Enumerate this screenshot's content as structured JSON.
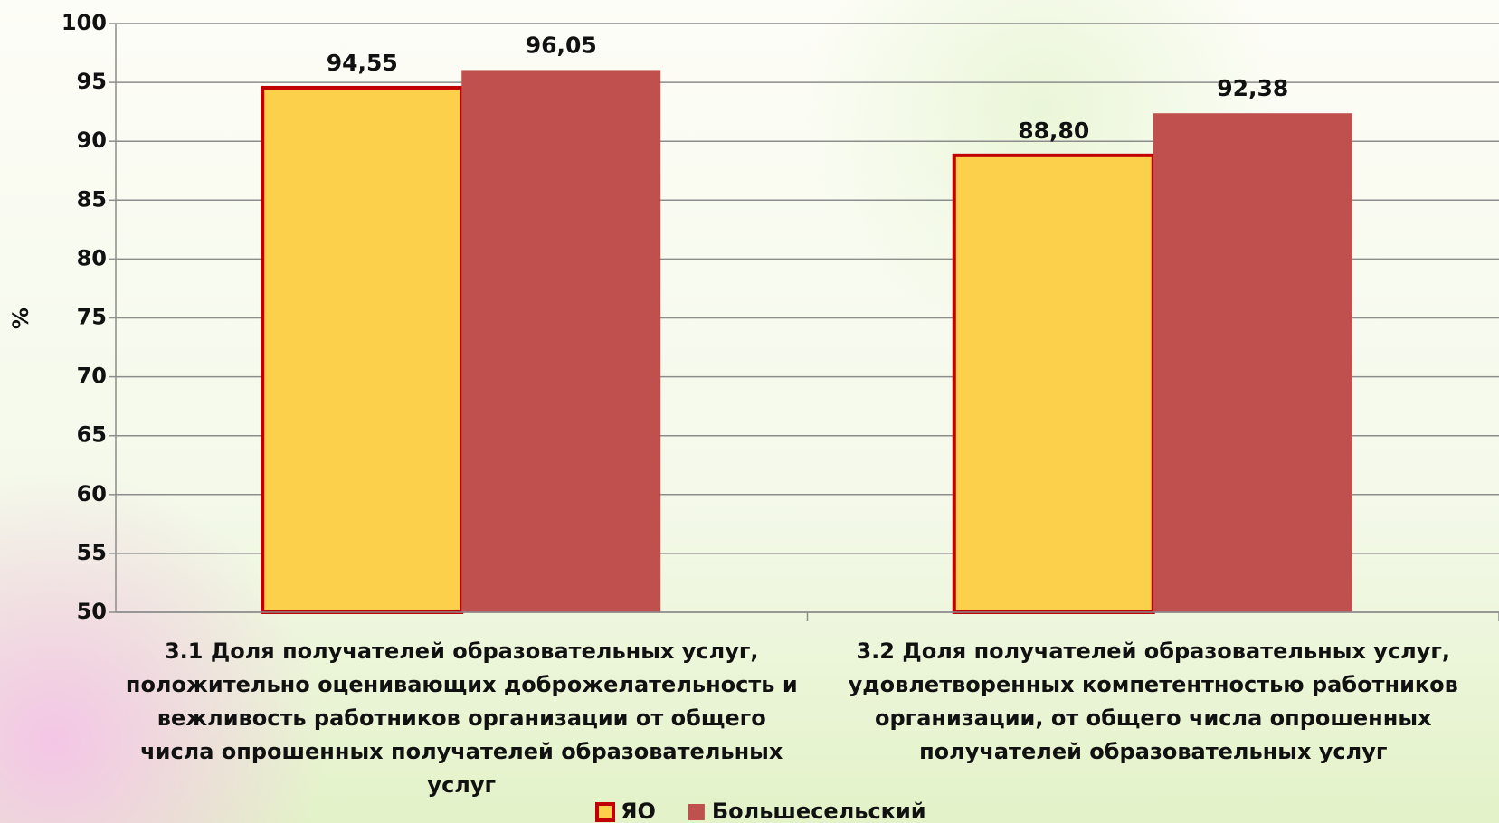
{
  "chart_data": {
    "type": "bar",
    "y_label": "%",
    "categories": [
      "3.1 Доля получателей образовательных услуг, положительно оценивающих доброжелательность и вежливость работников организации от общего числа опрошенных получателей образовательных услуг",
      "3.2 Доля получателей образовательных услуг, удовлетворенных компетентностью работников организации, от общего числа опрошенных получателей образовательных услуг"
    ],
    "series": [
      {
        "name": "ЯО",
        "color": "#fcd04b",
        "border": "#c00000",
        "values": [
          94.55,
          88.8
        ],
        "value_labels": [
          "94,55",
          "88,80"
        ]
      },
      {
        "name": "Большесельский",
        "color": "#c0504d",
        "values": [
          96.05,
          92.38
        ],
        "value_labels": [
          "96,05",
          "92,38"
        ]
      }
    ],
    "ylim": [
      50,
      100
    ],
    "yticks": [
      50,
      55,
      60,
      65,
      70,
      75,
      80,
      85,
      90,
      95,
      100
    ],
    "grid": true
  }
}
